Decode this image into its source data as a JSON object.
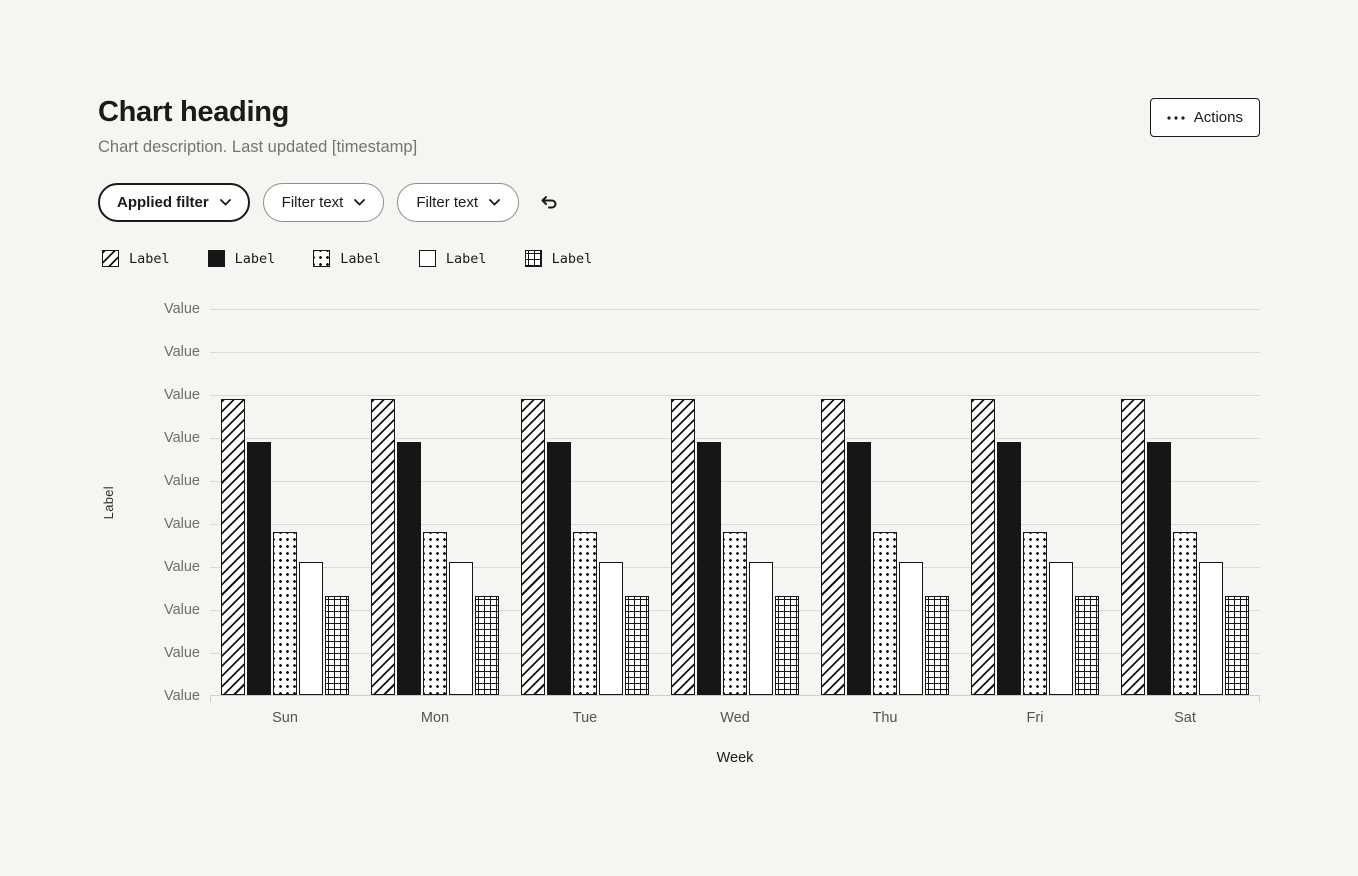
{
  "header": {
    "heading": "Chart heading",
    "description": "Chart description. Last updated [timestamp]",
    "actions": {
      "label": "Actions",
      "icon": "horizontal-dots-icon"
    }
  },
  "filters": {
    "pills": [
      {
        "label": "Applied filter",
        "applied": true
      },
      {
        "label": "Filter text",
        "applied": false
      },
      {
        "label": "Filter text",
        "applied": false
      }
    ],
    "reset_icon": "undo-arrow-icon"
  },
  "legend": {
    "items": [
      {
        "label": "Label",
        "pattern": "diagonal-stripes"
      },
      {
        "label": "Label",
        "pattern": "solid"
      },
      {
        "label": "Label",
        "pattern": "dots"
      },
      {
        "label": "Label",
        "pattern": "outline"
      },
      {
        "label": "Label",
        "pattern": "crosshatch"
      }
    ]
  },
  "chart_data": {
    "type": "bar",
    "title": "Chart heading",
    "categories": [
      "Sun",
      "Mon",
      "Tue",
      "Wed",
      "Thu",
      "Fri",
      "Sat"
    ],
    "series": [
      {
        "name": "Label",
        "pattern": "diagonal-stripes",
        "values": [
          6.9,
          6.9,
          6.9,
          6.9,
          6.9,
          6.9,
          6.9
        ]
      },
      {
        "name": "Label",
        "pattern": "solid",
        "values": [
          5.9,
          5.9,
          5.9,
          5.9,
          5.9,
          5.9,
          5.9
        ]
      },
      {
        "name": "Label",
        "pattern": "dots",
        "values": [
          3.8,
          3.8,
          3.8,
          3.8,
          3.8,
          3.8,
          3.8
        ]
      },
      {
        "name": "Label",
        "pattern": "outline",
        "values": [
          3.1,
          3.1,
          3.1,
          3.1,
          3.1,
          3.1,
          3.1
        ]
      },
      {
        "name": "Label",
        "pattern": "crosshatch",
        "values": [
          2.3,
          2.3,
          2.3,
          2.3,
          2.3,
          2.3,
          2.3
        ]
      }
    ],
    "xlabel": "Week",
    "ylabel": "Label",
    "y_ticks": [
      "Value",
      "Value",
      "Value",
      "Value",
      "Value",
      "Value",
      "Value",
      "Value",
      "Value",
      "Value"
    ],
    "ylim": [
      0,
      9
    ],
    "grid": true,
    "legend_position": "top"
  },
  "colors": {
    "background": "#f5f5f2",
    "ink": "#1a1a18",
    "muted_text": "#75756f",
    "gridline": "#dcdcd6",
    "bar_fill": "#161616",
    "bar_background": "#ffffff"
  }
}
